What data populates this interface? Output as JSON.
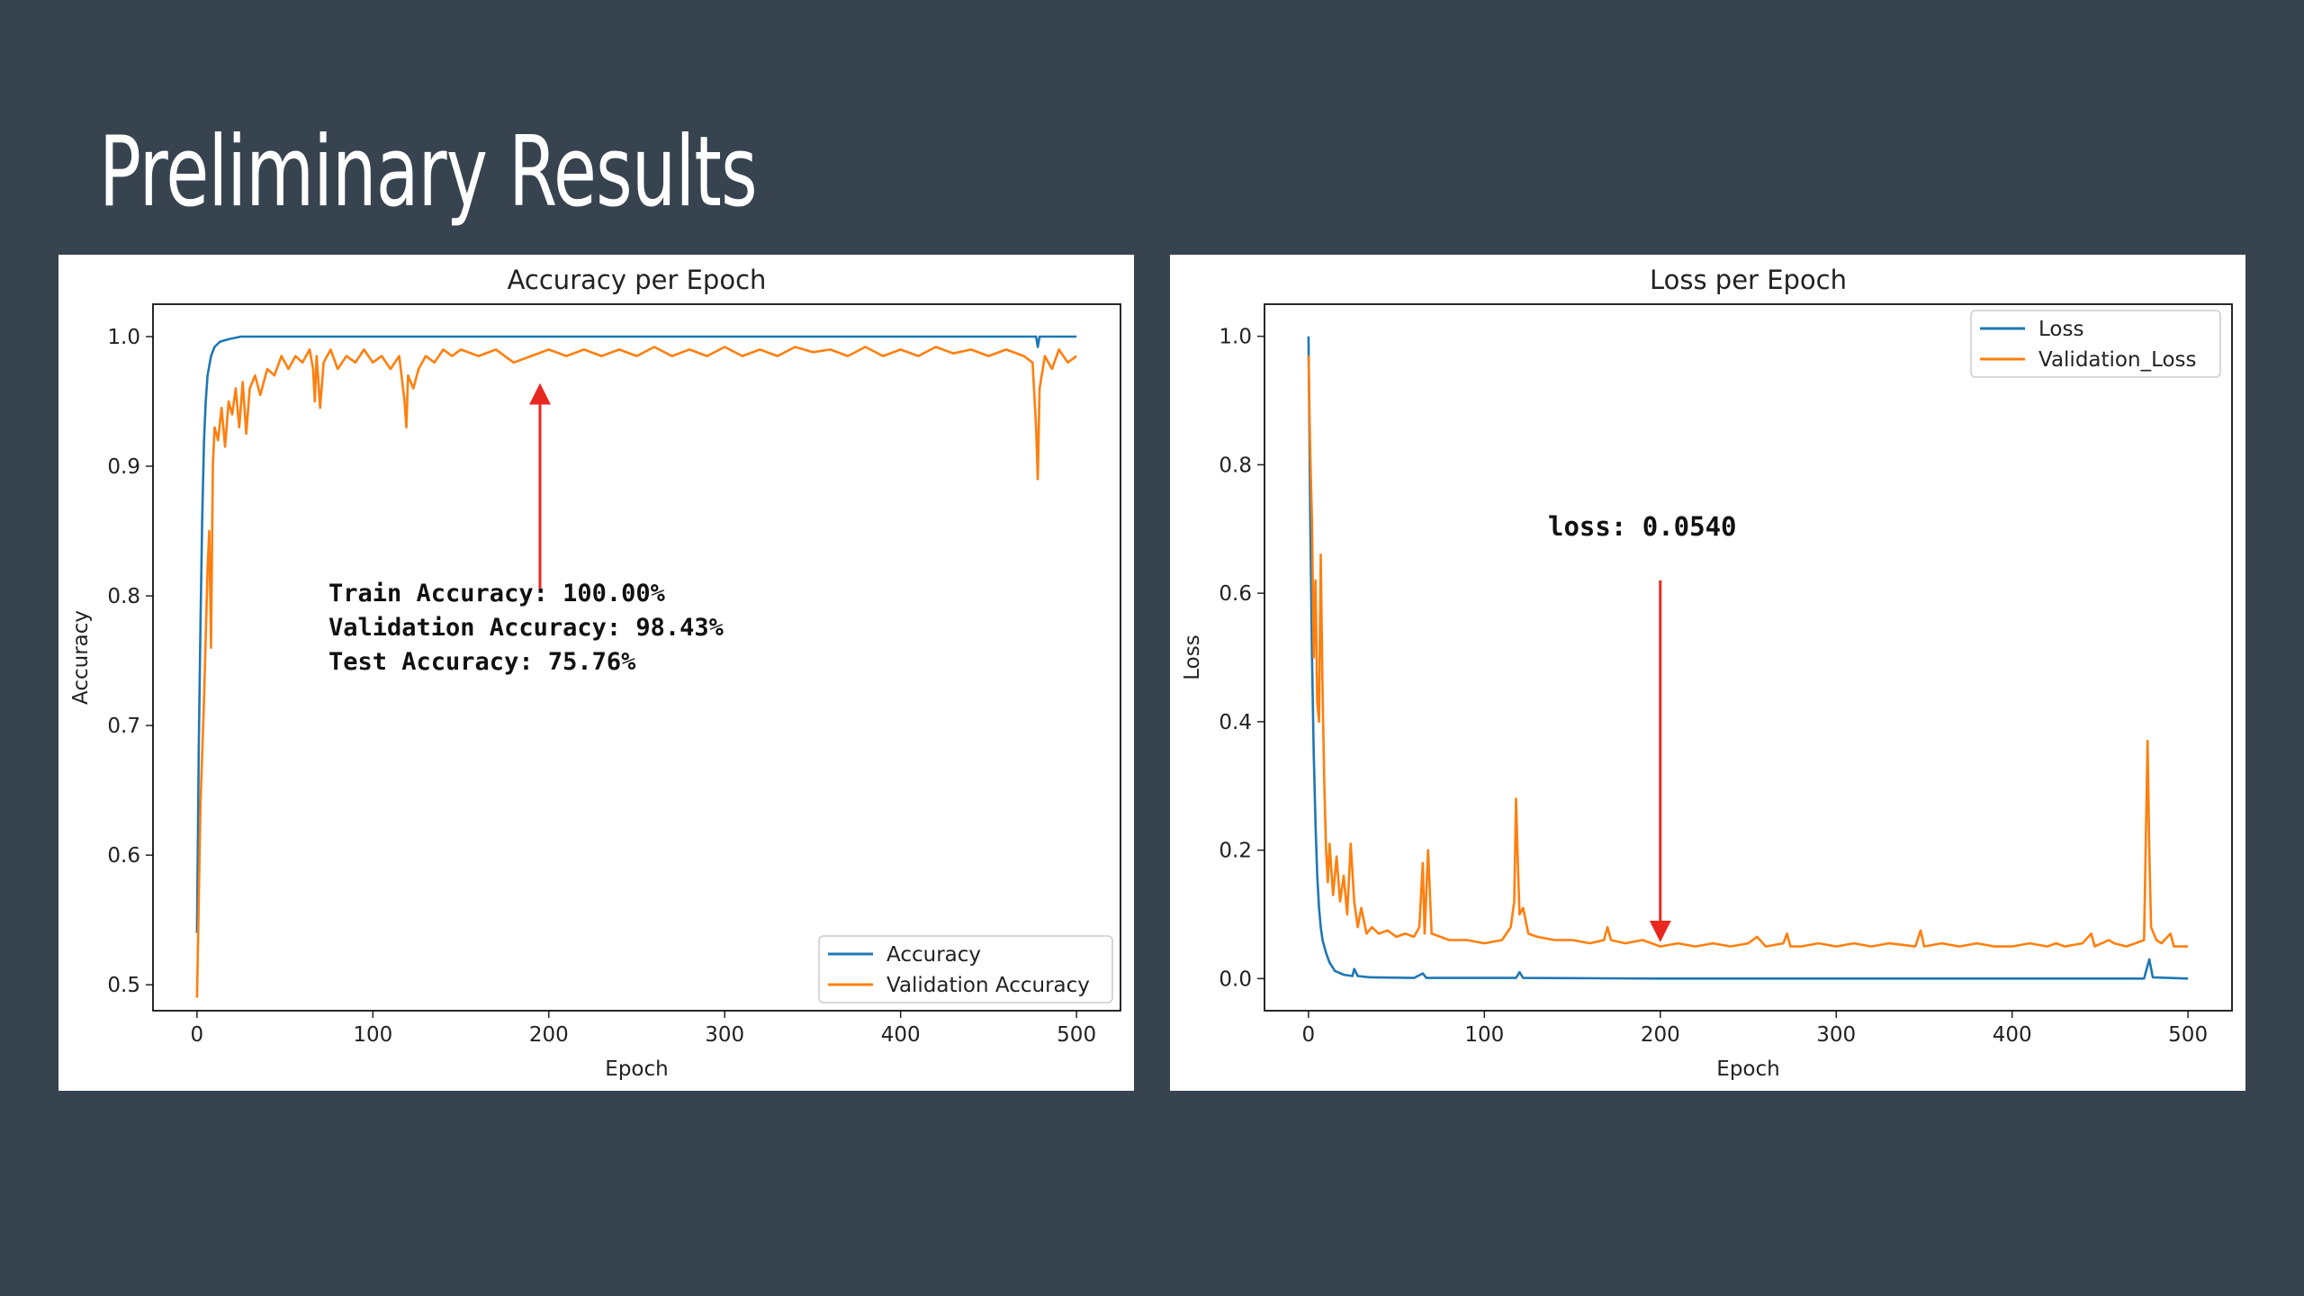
{
  "slide": {
    "title": "Preliminary Results"
  },
  "colors": {
    "background": "#37444f",
    "series_blue": "#1f77b4",
    "series_orange": "#ff7f0e",
    "arrow": "#e8281e"
  },
  "chart_data": [
    {
      "id": "accuracy",
      "type": "line",
      "title": "Accuracy per Epoch",
      "xlabel": "Epoch",
      "ylabel": "Accuracy",
      "xlim": [
        -25,
        525
      ],
      "ylim": [
        0.48,
        1.025
      ],
      "xticks": [
        0,
        100,
        200,
        300,
        400,
        500
      ],
      "xtick_labels": [
        "0",
        "100",
        "200",
        "300",
        "400",
        "500"
      ],
      "yticks": [
        0.5,
        0.6,
        0.7,
        0.8,
        0.9,
        1.0
      ],
      "ytick_labels": [
        "0.5",
        "0.6",
        "0.7",
        "0.8",
        "0.9",
        "1.0"
      ],
      "legend": "bottom-right",
      "series": [
        {
          "name": "Accuracy",
          "color": "#1f77b4",
          "points": [
            [
              0,
              0.54
            ],
            [
              1,
              0.68
            ],
            [
              2,
              0.78
            ],
            [
              3,
              0.86
            ],
            [
              4,
              0.92
            ],
            [
              5,
              0.95
            ],
            [
              6,
              0.97
            ],
            [
              8,
              0.985
            ],
            [
              10,
              0.992
            ],
            [
              13,
              0.996
            ],
            [
              18,
              0.998
            ],
            [
              25,
              1.0
            ],
            [
              60,
              1.0
            ],
            [
              100,
              1.0
            ],
            [
              150,
              1.0
            ],
            [
              200,
              1.0
            ],
            [
              300,
              1.0
            ],
            [
              400,
              1.0
            ],
            [
              470,
              1.0
            ],
            [
              477,
              1.0
            ],
            [
              478,
              0.992
            ],
            [
              479,
              1.0
            ],
            [
              500,
              1.0
            ]
          ]
        },
        {
          "name": "Validation Accuracy",
          "color": "#ff7f0e",
          "points": [
            [
              0,
              0.49
            ],
            [
              2,
              0.64
            ],
            [
              4,
              0.72
            ],
            [
              6,
              0.82
            ],
            [
              7,
              0.85
            ],
            [
              8,
              0.76
            ],
            [
              9,
              0.9
            ],
            [
              10,
              0.93
            ],
            [
              12,
              0.92
            ],
            [
              14,
              0.945
            ],
            [
              16,
              0.915
            ],
            [
              18,
              0.95
            ],
            [
              20,
              0.94
            ],
            [
              22,
              0.96
            ],
            [
              24,
              0.93
            ],
            [
              26,
              0.965
            ],
            [
              28,
              0.925
            ],
            [
              30,
              0.96
            ],
            [
              33,
              0.97
            ],
            [
              36,
              0.955
            ],
            [
              40,
              0.975
            ],
            [
              44,
              0.97
            ],
            [
              48,
              0.985
            ],
            [
              52,
              0.975
            ],
            [
              56,
              0.985
            ],
            [
              60,
              0.98
            ],
            [
              64,
              0.99
            ],
            [
              66,
              0.975
            ],
            [
              67,
              0.95
            ],
            [
              68,
              0.985
            ],
            [
              70,
              0.945
            ],
            [
              72,
              0.98
            ],
            [
              76,
              0.99
            ],
            [
              80,
              0.975
            ],
            [
              85,
              0.985
            ],
            [
              90,
              0.98
            ],
            [
              95,
              0.99
            ],
            [
              100,
              0.98
            ],
            [
              105,
              0.985
            ],
            [
              110,
              0.975
            ],
            [
              115,
              0.985
            ],
            [
              118,
              0.95
            ],
            [
              119,
              0.93
            ],
            [
              120,
              0.97
            ],
            [
              123,
              0.96
            ],
            [
              126,
              0.975
            ],
            [
              130,
              0.985
            ],
            [
              135,
              0.98
            ],
            [
              140,
              0.99
            ],
            [
              145,
              0.985
            ],
            [
              150,
              0.99
            ],
            [
              160,
              0.985
            ],
            [
              170,
              0.99
            ],
            [
              180,
              0.98
            ],
            [
              190,
              0.985
            ],
            [
              200,
              0.99
            ],
            [
              210,
              0.985
            ],
            [
              220,
              0.99
            ],
            [
              230,
              0.985
            ],
            [
              240,
              0.99
            ],
            [
              250,
              0.985
            ],
            [
              260,
              0.992
            ],
            [
              270,
              0.985
            ],
            [
              280,
              0.99
            ],
            [
              290,
              0.985
            ],
            [
              300,
              0.992
            ],
            [
              310,
              0.985
            ],
            [
              320,
              0.99
            ],
            [
              330,
              0.985
            ],
            [
              340,
              0.992
            ],
            [
              350,
              0.988
            ],
            [
              360,
              0.99
            ],
            [
              370,
              0.985
            ],
            [
              380,
              0.992
            ],
            [
              390,
              0.985
            ],
            [
              400,
              0.99
            ],
            [
              410,
              0.985
            ],
            [
              420,
              0.992
            ],
            [
              430,
              0.987
            ],
            [
              440,
              0.99
            ],
            [
              450,
              0.985
            ],
            [
              460,
              0.99
            ],
            [
              470,
              0.985
            ],
            [
              475,
              0.98
            ],
            [
              477,
              0.93
            ],
            [
              478,
              0.89
            ],
            [
              479,
              0.96
            ],
            [
              482,
              0.985
            ],
            [
              486,
              0.975
            ],
            [
              490,
              0.99
            ],
            [
              495,
              0.98
            ],
            [
              500,
              0.985
            ]
          ]
        }
      ],
      "annotations": [
        "Train Accuracy: 100.00%",
        "Validation Accuracy: 98.43%",
        "Test Accuracy: 75.76%"
      ],
      "arrow": {
        "direction": "up",
        "x": 195,
        "y_from": 0.805,
        "y_to": 0.96
      }
    },
    {
      "id": "loss",
      "type": "line",
      "title": "Loss per Epoch",
      "xlabel": "Epoch",
      "ylabel": "Loss",
      "xlim": [
        -25,
        525
      ],
      "ylim": [
        -0.05,
        1.05
      ],
      "xticks": [
        0,
        100,
        200,
        300,
        400,
        500
      ],
      "xtick_labels": [
        "0",
        "100",
        "200",
        "300",
        "400",
        "500"
      ],
      "yticks": [
        0.0,
        0.2,
        0.4,
        0.6,
        0.8,
        1.0
      ],
      "ytick_labels": [
        "0.0",
        "0.2",
        "0.4",
        "0.6",
        "0.8",
        "1.0"
      ],
      "legend": "top-right",
      "series": [
        {
          "name": "Loss",
          "color": "#1f77b4",
          "points": [
            [
              0,
              1.0
            ],
            [
              1,
              0.72
            ],
            [
              2,
              0.5
            ],
            [
              3,
              0.35
            ],
            [
              4,
              0.24
            ],
            [
              5,
              0.16
            ],
            [
              6,
              0.11
            ],
            [
              7,
              0.08
            ],
            [
              8,
              0.06
            ],
            [
              10,
              0.04
            ],
            [
              12,
              0.025
            ],
            [
              15,
              0.012
            ],
            [
              20,
              0.006
            ],
            [
              25,
              0.004
            ],
            [
              26,
              0.015
            ],
            [
              28,
              0.004
            ],
            [
              35,
              0.002
            ],
            [
              60,
              0.001
            ],
            [
              65,
              0.008
            ],
            [
              67,
              0.001
            ],
            [
              100,
              0.001
            ],
            [
              118,
              0.001
            ],
            [
              120,
              0.01
            ],
            [
              122,
              0.001
            ],
            [
              200,
              0.0
            ],
            [
              300,
              0.0
            ],
            [
              400,
              0.0
            ],
            [
              475,
              0.0
            ],
            [
              478,
              0.03
            ],
            [
              480,
              0.002
            ],
            [
              500,
              0.0
            ]
          ]
        },
        {
          "name": "Validation_Loss",
          "color": "#ff7f0e",
          "points": [
            [
              0,
              0.97
            ],
            [
              1,
              0.82
            ],
            [
              2,
              0.71
            ],
            [
              3,
              0.5
            ],
            [
              4,
              0.62
            ],
            [
              5,
              0.43
            ],
            [
              6,
              0.4
            ],
            [
              7,
              0.66
            ],
            [
              8,
              0.45
            ],
            [
              9,
              0.3
            ],
            [
              10,
              0.2
            ],
            [
              11,
              0.15
            ],
            [
              12,
              0.21
            ],
            [
              14,
              0.13
            ],
            [
              16,
              0.19
            ],
            [
              18,
              0.12
            ],
            [
              20,
              0.16
            ],
            [
              22,
              0.1
            ],
            [
              24,
              0.21
            ],
            [
              26,
              0.12
            ],
            [
              28,
              0.08
            ],
            [
              30,
              0.11
            ],
            [
              33,
              0.07
            ],
            [
              36,
              0.08
            ],
            [
              40,
              0.07
            ],
            [
              45,
              0.075
            ],
            [
              50,
              0.065
            ],
            [
              55,
              0.07
            ],
            [
              60,
              0.065
            ],
            [
              63,
              0.08
            ],
            [
              65,
              0.18
            ],
            [
              66,
              0.07
            ],
            [
              68,
              0.2
            ],
            [
              70,
              0.07
            ],
            [
              75,
              0.065
            ],
            [
              80,
              0.06
            ],
            [
              90,
              0.06
            ],
            [
              100,
              0.055
            ],
            [
              110,
              0.06
            ],
            [
              115,
              0.08
            ],
            [
              117,
              0.12
            ],
            [
              118,
              0.28
            ],
            [
              119,
              0.18
            ],
            [
              120,
              0.1
            ],
            [
              122,
              0.11
            ],
            [
              125,
              0.07
            ],
            [
              130,
              0.065
            ],
            [
              140,
              0.06
            ],
            [
              150,
              0.06
            ],
            [
              160,
              0.055
            ],
            [
              168,
              0.06
            ],
            [
              170,
              0.08
            ],
            [
              172,
              0.06
            ],
            [
              180,
              0.055
            ],
            [
              190,
              0.06
            ],
            [
              200,
              0.05
            ],
            [
              210,
              0.055
            ],
            [
              220,
              0.05
            ],
            [
              230,
              0.055
            ],
            [
              240,
              0.05
            ],
            [
              250,
              0.055
            ],
            [
              255,
              0.065
            ],
            [
              260,
              0.05
            ],
            [
              270,
              0.055
            ],
            [
              272,
              0.07
            ],
            [
              274,
              0.05
            ],
            [
              280,
              0.05
            ],
            [
              290,
              0.055
            ],
            [
              300,
              0.05
            ],
            [
              310,
              0.055
            ],
            [
              320,
              0.05
            ],
            [
              330,
              0.055
            ],
            [
              345,
              0.05
            ],
            [
              348,
              0.075
            ],
            [
              350,
              0.05
            ],
            [
              360,
              0.055
            ],
            [
              370,
              0.05
            ],
            [
              380,
              0.055
            ],
            [
              390,
              0.05
            ],
            [
              400,
              0.05
            ],
            [
              410,
              0.055
            ],
            [
              420,
              0.05
            ],
            [
              425,
              0.055
            ],
            [
              430,
              0.05
            ],
            [
              440,
              0.055
            ],
            [
              445,
              0.07
            ],
            [
              447,
              0.05
            ],
            [
              455,
              0.06
            ],
            [
              458,
              0.055
            ],
            [
              465,
              0.05
            ],
            [
              470,
              0.055
            ],
            [
              475,
              0.06
            ],
            [
              477,
              0.37
            ],
            [
              478,
              0.2
            ],
            [
              479,
              0.08
            ],
            [
              482,
              0.06
            ],
            [
              485,
              0.055
            ],
            [
              490,
              0.07
            ],
            [
              492,
              0.05
            ],
            [
              500,
              0.05
            ]
          ]
        }
      ],
      "annotations": [
        "loss: 0.0540"
      ],
      "arrow": {
        "direction": "down",
        "x": 200,
        "y_from": 0.62,
        "y_to": 0.065
      }
    }
  ]
}
